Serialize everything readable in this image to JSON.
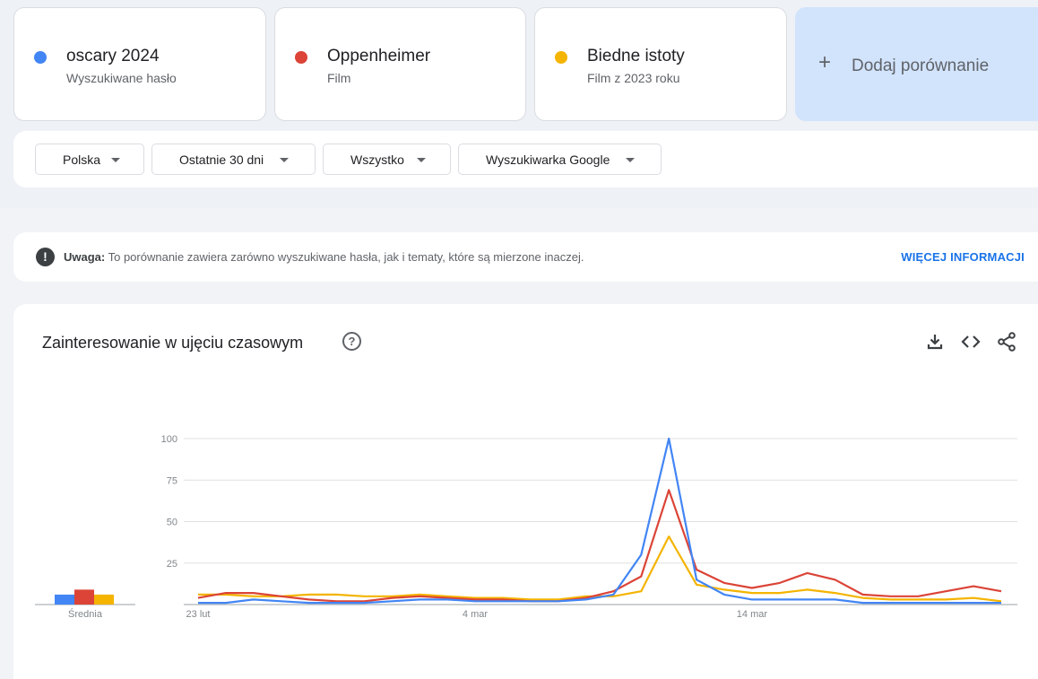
{
  "terms": [
    {
      "name": "oscary 2024",
      "type": "Wyszukiwane hasło",
      "color": "#4285f4"
    },
    {
      "name": "Oppenheimer",
      "type": "Film",
      "color": "#db4437"
    },
    {
      "name": "Biedne istoty",
      "type": "Film z 2023 roku",
      "color": "#f4b400"
    }
  ],
  "add_comparison": {
    "icon": "plus-icon",
    "label": "Dodaj porównanie"
  },
  "filters": [
    {
      "label": "Polska"
    },
    {
      "label": "Ostatnie 30 dni"
    },
    {
      "label": "Wszystko"
    },
    {
      "label": "Wyszukiwarka Google"
    }
  ],
  "warning": {
    "icon": "exclamation-icon",
    "bold": "Uwaga:",
    "text": " To porównanie zawiera zarówno wyszukiwane hasła, jak i tematy, które są mierzone inaczej.",
    "link": "WIĘCEJ INFORMACJI"
  },
  "chart_header": {
    "title": "Zainteresowanie w ujęciu czasowym",
    "help_icon": "question-icon",
    "tools": [
      "download-icon",
      "embed-code-icon",
      "share-icon"
    ]
  },
  "chart_data": {
    "type": "line",
    "x": [
      "23 lut",
      "24 lut",
      "25 lut",
      "26 lut",
      "27 lut",
      "28 lut",
      "29 lut",
      "1 mar",
      "2 mar",
      "3 mar",
      "4 mar",
      "5 mar",
      "6 mar",
      "7 mar",
      "8 mar",
      "9 mar",
      "10 mar",
      "11 mar",
      "12 mar",
      "13 mar",
      "14 mar",
      "15 mar",
      "16 mar",
      "17 mar",
      "18 mar",
      "19 mar",
      "20 mar",
      "21 mar",
      "22 mar",
      "23 mar"
    ],
    "x_tick_labels": [
      {
        "index": 0,
        "label": "23 lut"
      },
      {
        "index": 10,
        "label": "4 mar"
      },
      {
        "index": 20,
        "label": "14 mar"
      }
    ],
    "y_ticks": [
      100,
      75,
      50,
      25
    ],
    "ylim": [
      0,
      100
    ],
    "grid": true,
    "series": [
      {
        "name": "oscary 2024",
        "color": "#4285f4",
        "values": [
          1,
          1,
          3,
          2,
          1,
          1,
          1,
          2,
          3,
          3,
          2,
          2,
          2,
          2,
          3,
          6,
          30,
          100,
          15,
          6,
          3,
          3,
          3,
          3,
          1,
          1,
          1,
          1,
          1,
          1
        ]
      },
      {
        "name": "Oppenheimer",
        "color": "#db4437",
        "values": [
          4,
          7,
          7,
          5,
          3,
          2,
          2,
          4,
          5,
          4,
          3,
          3,
          2,
          2,
          4,
          8,
          17,
          69,
          21,
          13,
          10,
          13,
          19,
          15,
          6,
          5,
          5,
          8,
          11,
          8
        ]
      },
      {
        "name": "Biedne istoty",
        "color": "#f4b400",
        "values": [
          6,
          6,
          5,
          5,
          6,
          6,
          5,
          5,
          6,
          5,
          4,
          4,
          3,
          3,
          5,
          5,
          8,
          41,
          12,
          9,
          7,
          7,
          9,
          7,
          4,
          3,
          3,
          3,
          4,
          2
        ]
      }
    ],
    "average": {
      "label": "Średnia",
      "values": [
        6,
        9,
        6
      ]
    }
  }
}
